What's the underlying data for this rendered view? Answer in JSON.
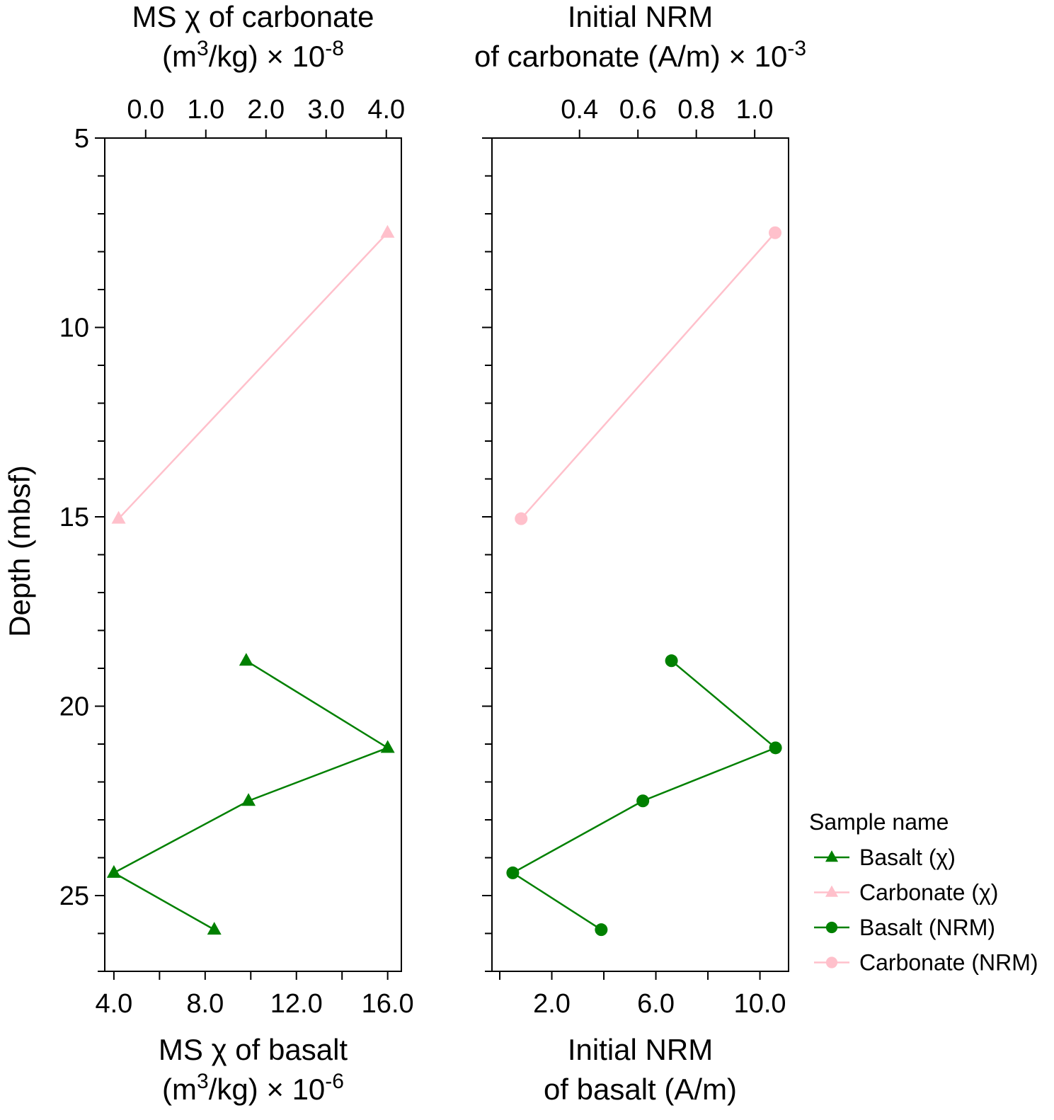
{
  "chart_data": [
    {
      "type": "line",
      "panel": "left",
      "ylabel": "Depth (mbsf)",
      "ylim": [
        27,
        5
      ],
      "yticks": [
        5,
        10,
        15,
        20,
        25
      ],
      "bottom_axis": {
        "title_line1": "MS χ of basalt",
        "title_line2_pre": "(m",
        "title_line2_sup": "3",
        "title_line2_mid": "/kg) × 10",
        "title_line2_exp": "-6",
        "range": [
          3.6,
          16.6
        ],
        "ticks": [
          4,
          6,
          8,
          10,
          12,
          14,
          16
        ],
        "tick_labels": [
          {
            "value": 4,
            "label": "4.0"
          },
          {
            "value": 8,
            "label": "8.0"
          },
          {
            "value": 12,
            "label": "12.0"
          },
          {
            "value": 16,
            "label": "16.0"
          }
        ]
      },
      "top_axis": {
        "title_line1": "MS χ of carbonate",
        "title_line2_pre": "(m",
        "title_line2_sup": "3",
        "title_line2_mid": "/kg) × 10",
        "title_line2_exp": "-8",
        "range": [
          -0.68,
          4.25
        ],
        "ticks": [
          0,
          1,
          2,
          3,
          4
        ],
        "tick_labels": [
          {
            "value": 0,
            "label": "0.0"
          },
          {
            "value": 1,
            "label": "1.0"
          },
          {
            "value": 2,
            "label": "2.0"
          },
          {
            "value": 3,
            "label": "3.0"
          },
          {
            "value": 4,
            "label": "4.0"
          }
        ]
      },
      "series": [
        {
          "name": "Basalt (χ)",
          "axis": "bottom",
          "marker": "triangle",
          "color": "#008000",
          "points": [
            [
              9.8,
              18.8
            ],
            [
              16.0,
              21.1
            ],
            [
              9.9,
              22.5
            ],
            [
              4.0,
              24.4
            ],
            [
              8.4,
              25.9
            ]
          ]
        },
        {
          "name": "Carbonate (χ)",
          "axis": "top",
          "marker": "triangle",
          "color": "#ffc0cb",
          "points": [
            [
              4.02,
              7.5
            ],
            [
              -0.45,
              15.05
            ]
          ]
        }
      ]
    },
    {
      "type": "line",
      "panel": "right",
      "ylim": [
        27,
        5
      ],
      "yticks": [
        5,
        10,
        15,
        20,
        25
      ],
      "bottom_axis": {
        "title_line1": "Initial NRM",
        "title_line2": "of basalt (A/m)",
        "range": [
          -0.3,
          11.1
        ],
        "ticks": [
          0,
          2,
          4,
          6,
          8,
          10
        ],
        "tick_labels": [
          {
            "value": 2,
            "label": "2.0"
          },
          {
            "value": 6,
            "label": "6.0"
          },
          {
            "value": 10,
            "label": "10.0"
          }
        ]
      },
      "top_axis": {
        "title_line1": "Initial NRM",
        "title_line2_pre": "of carbonate (A/m) × 10",
        "title_line2_exp": "-3",
        "range": [
          0.1,
          1.116
        ],
        "ticks": [
          0.4,
          0.6,
          0.8,
          1.0
        ],
        "tick_labels": [
          {
            "value": 0.4,
            "label": "0.4"
          },
          {
            "value": 0.6,
            "label": "0.6"
          },
          {
            "value": 0.8,
            "label": "0.8"
          },
          {
            "value": 1.0,
            "label": "1.0"
          }
        ]
      },
      "series": [
        {
          "name": "Basalt (NRM)",
          "axis": "bottom",
          "marker": "circle",
          "color": "#008000",
          "points": [
            [
              6.6,
              18.8
            ],
            [
              10.6,
              21.1
            ],
            [
              5.5,
              22.5
            ],
            [
              0.5,
              24.4
            ],
            [
              3.9,
              25.9
            ]
          ]
        },
        {
          "name": "Carbonate (NRM)",
          "axis": "top",
          "marker": "circle",
          "color": "#ffc0cb",
          "points": [
            [
              1.07,
              7.5
            ],
            [
              0.2,
              15.05
            ]
          ]
        }
      ]
    }
  ],
  "legend": {
    "title": "Sample name",
    "items": [
      {
        "label": "Basalt (χ)",
        "marker": "triangle",
        "color": "#008000"
      },
      {
        "label": "Carbonate (χ)",
        "marker": "triangle",
        "color": "#ffc0cb"
      },
      {
        "label": "Basalt (NRM)",
        "marker": "circle",
        "color": "#008000"
      },
      {
        "label": "Carbonate (NRM)",
        "marker": "circle",
        "color": "#ffc0cb"
      }
    ]
  }
}
